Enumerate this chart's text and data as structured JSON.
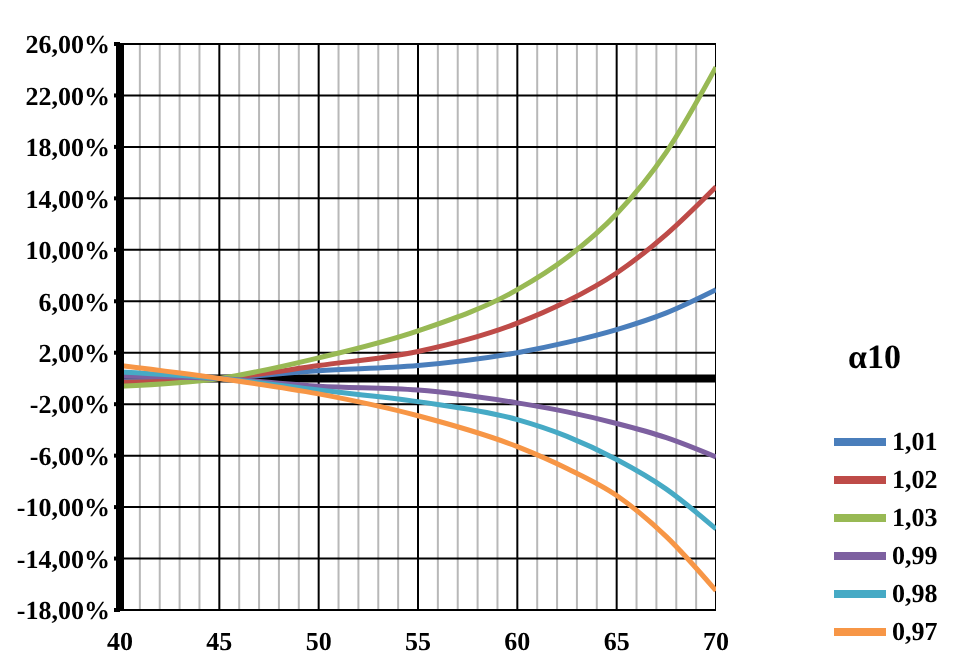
{
  "chart_data": {
    "type": "line",
    "xlabel": "α10",
    "x": [
      40,
      45,
      50,
      55,
      60,
      62.5,
      65,
      67.5,
      70
    ],
    "series": [
      {
        "name": "1,01",
        "color": "#4a7ebb",
        "values": [
          -0.2,
          0,
          0.6,
          1.0,
          2.0,
          2.8,
          3.8,
          5.1,
          6.9
        ]
      },
      {
        "name": "1,02",
        "color": "#be4b48",
        "values": [
          -0.3,
          0,
          1.0,
          2.1,
          4.3,
          6.0,
          8.2,
          11.2,
          14.9
        ]
      },
      {
        "name": "1,03",
        "color": "#98b954",
        "values": [
          -0.6,
          0,
          1.6,
          3.7,
          6.9,
          9.4,
          12.8,
          17.6,
          24.2
        ]
      },
      {
        "name": "0,99",
        "color": "#7d60a0",
        "values": [
          0.2,
          0,
          -0.6,
          -0.9,
          -1.9,
          -2.6,
          -3.5,
          -4.6,
          -6.1
        ]
      },
      {
        "name": "0,98",
        "color": "#46aac5",
        "values": [
          0.5,
          0,
          -0.9,
          -1.8,
          -3.2,
          -4.5,
          -6.3,
          -8.6,
          -11.7
        ]
      },
      {
        "name": "0,97",
        "color": "#f79646",
        "values": [
          1.0,
          0,
          -1.2,
          -2.9,
          -5.3,
          -7.0,
          -9.1,
          -12.3,
          -16.5
        ]
      }
    ],
    "xlim": [
      40,
      70
    ],
    "xticks": [
      40,
      {
        "value": 41,
        "label": null
      },
      {
        "value": 42,
        "label": null
      },
      {
        "value": 43,
        "label": null
      },
      {
        "value": 44,
        "label": null
      },
      45,
      {
        "value": 46,
        "label": null
      },
      {
        "value": 47,
        "label": null
      },
      {
        "value": 48,
        "label": null
      },
      {
        "value": 49,
        "label": null
      },
      50,
      {
        "value": 51,
        "label": null
      },
      {
        "value": 52,
        "label": null
      },
      {
        "value": 53,
        "label": null
      },
      {
        "value": 54,
        "label": null
      },
      55,
      {
        "value": 56,
        "label": null
      },
      {
        "value": 57,
        "label": null
      },
      {
        "value": 58,
        "label": null
      },
      {
        "value": 59,
        "label": null
      },
      60,
      {
        "value": 61,
        "label": null
      },
      {
        "value": 62,
        "label": null
      },
      {
        "value": 63,
        "label": null
      },
      {
        "value": 64,
        "label": null
      },
      65,
      {
        "value": 66,
        "label": null
      },
      {
        "value": 67,
        "label": null
      },
      {
        "value": 68,
        "label": null
      },
      {
        "value": 69,
        "label": null
      },
      70
    ],
    "ylim": [
      -18,
      26
    ],
    "yticks": [
      {
        "value": -18,
        "label": "-18,00%"
      },
      {
        "value": -14,
        "label": "-14,00%"
      },
      {
        "value": -10,
        "label": "-10,00%"
      },
      {
        "value": -6,
        "label": "-6,00%"
      },
      {
        "value": -2,
        "label": "-2,00%"
      },
      {
        "value": 2,
        "label": "2,00%"
      },
      {
        "value": 6,
        "label": "6,00%"
      },
      {
        "value": 10,
        "label": "10,00%"
      },
      {
        "value": 14,
        "label": "14,00%"
      },
      {
        "value": 18,
        "label": "18,00%"
      },
      {
        "value": 22,
        "label": "22,00%"
      },
      {
        "value": 26,
        "label": "26,00%"
      }
    ],
    "grid": true,
    "legend": "bottom right",
    "marker": "none",
    "line_style": "solid"
  }
}
